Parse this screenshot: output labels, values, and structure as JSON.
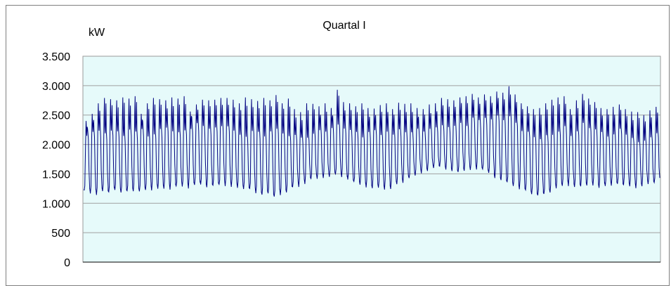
{
  "chart_data": {
    "type": "line",
    "title": "Quartal I",
    "ylabel": "kW",
    "xlabel": "",
    "ylim": [
      0,
      3500
    ],
    "yticks": [
      0,
      500,
      1000,
      1500,
      2000,
      2500,
      3000,
      3500
    ],
    "ytick_labels": [
      "0",
      "500",
      "1.000",
      "1.500",
      "2.000",
      "2.500",
      "3.000",
      "3.500"
    ],
    "grid": true,
    "plot_background": "#e6fafa",
    "line_color": "#000080",
    "series": [
      {
        "daily_peak_kw": [
          2400,
          2520,
          2700,
          2790,
          2770,
          2750,
          2800,
          2780,
          2820,
          2520,
          2700,
          2790,
          2770,
          2750,
          2800,
          2780,
          2820,
          2560,
          2680,
          2760,
          2750,
          2760,
          2790,
          2790,
          2760,
          2700,
          2800,
          2770,
          2740,
          2790,
          2750,
          2840,
          2700,
          2780,
          2600,
          2550,
          2700,
          2690,
          2650,
          2700,
          2620,
          2930,
          2720,
          2700,
          2650,
          2700,
          2620,
          2610,
          2670,
          2700,
          2600,
          2710,
          2690,
          2700,
          2620,
          2600,
          2680,
          2700,
          2790,
          2770,
          2750,
          2800,
          2820,
          2860,
          2800,
          2850,
          2820,
          2900,
          2880,
          2990,
          2850,
          2700,
          2650,
          2600,
          2620,
          2700,
          2760,
          2800,
          2820,
          2600,
          2750,
          2860,
          2780,
          2720,
          2620,
          2600,
          2640,
          2680,
          2600,
          2560,
          2550,
          2500,
          2580,
          2640
        ],
        "daily_low_kw": [
          1200,
          1180,
          1170,
          1190,
          1180,
          1200,
          1170,
          1190,
          1200,
          1210,
          1220,
          1230,
          1240,
          1250,
          1260,
          1270,
          1280,
          1280,
          1290,
          1300,
          1300,
          1290,
          1300,
          1310,
          1290,
          1280,
          1250,
          1230,
          1200,
          1160,
          1150,
          1110,
          1160,
          1200,
          1250,
          1300,
          1350,
          1400,
          1430,
          1450,
          1460,
          1470,
          1450,
          1400,
          1350,
          1300,
          1280,
          1260,
          1250,
          1260,
          1270,
          1300,
          1350,
          1400,
          1450,
          1500,
          1560,
          1580,
          1600,
          1580,
          1560,
          1530,
          1560,
          1580,
          1600,
          1560,
          1500,
          1450,
          1400,
          1350,
          1300,
          1250,
          1200,
          1160,
          1120,
          1150,
          1200,
          1250,
          1300,
          1320,
          1300,
          1280,
          1300,
          1310,
          1290,
          1280,
          1300,
          1310,
          1290,
          1270,
          1280,
          1300,
          1320,
          1330
        ],
        "day_level_kw": [
          2200,
          2250,
          2300,
          2250,
          2300,
          2280,
          2200,
          2300,
          2250,
          2300,
          2220,
          2250,
          2300,
          2350,
          2300,
          2250,
          2300,
          2350,
          2400,
          2350,
          2300,
          2350,
          2380,
          2350,
          2300,
          2250,
          2200,
          2300,
          2250,
          2200,
          2300,
          2350,
          2250,
          2200,
          2200,
          2150,
          2200,
          2250,
          2300,
          2250,
          2350,
          2400,
          2350,
          2300,
          2250,
          2200,
          2250,
          2300,
          2250,
          2300,
          2250,
          2300,
          2280,
          2250,
          2300,
          2250,
          2300,
          2350,
          2400,
          2350,
          2400,
          2450,
          2400,
          2500,
          2450,
          2500,
          2480,
          2550,
          2500,
          2550,
          2450,
          2300,
          2250,
          2200,
          2150,
          2200,
          2250,
          2300,
          2350,
          2200,
          2300,
          2400,
          2350,
          2300,
          2250,
          2200,
          2250,
          2300,
          2200,
          2150,
          2100,
          2150,
          2200,
          2250
        ]
      }
    ]
  }
}
